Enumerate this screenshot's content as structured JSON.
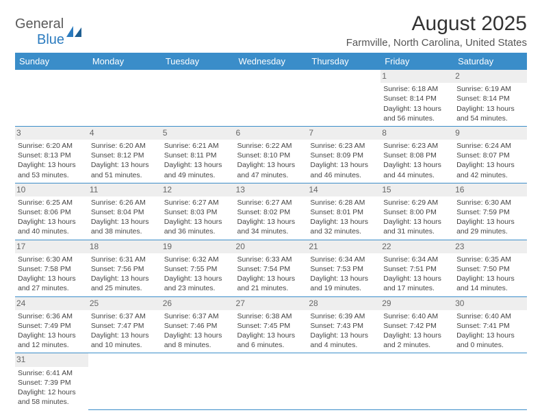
{
  "brand": {
    "general": "General",
    "blue": "Blue"
  },
  "title": "August 2025",
  "location": "Farmville, North Carolina, United States",
  "colors": {
    "header_bg": "#3a8dc9",
    "header_text": "#ffffff",
    "grid_line": "#3a8dc9",
    "daynum_bg": "#eeeeee",
    "text": "#444444",
    "logo_gray": "#5a5a5a",
    "logo_blue": "#2b7bbf"
  },
  "daysOfWeek": [
    "Sunday",
    "Monday",
    "Tuesday",
    "Wednesday",
    "Thursday",
    "Friday",
    "Saturday"
  ],
  "startOffset": 5,
  "days": [
    {
      "n": 1,
      "sr": "6:18 AM",
      "ss": "8:14 PM",
      "dl": "13 hours and 56 minutes."
    },
    {
      "n": 2,
      "sr": "6:19 AM",
      "ss": "8:14 PM",
      "dl": "13 hours and 54 minutes."
    },
    {
      "n": 3,
      "sr": "6:20 AM",
      "ss": "8:13 PM",
      "dl": "13 hours and 53 minutes."
    },
    {
      "n": 4,
      "sr": "6:20 AM",
      "ss": "8:12 PM",
      "dl": "13 hours and 51 minutes."
    },
    {
      "n": 5,
      "sr": "6:21 AM",
      "ss": "8:11 PM",
      "dl": "13 hours and 49 minutes."
    },
    {
      "n": 6,
      "sr": "6:22 AM",
      "ss": "8:10 PM",
      "dl": "13 hours and 47 minutes."
    },
    {
      "n": 7,
      "sr": "6:23 AM",
      "ss": "8:09 PM",
      "dl": "13 hours and 46 minutes."
    },
    {
      "n": 8,
      "sr": "6:23 AM",
      "ss": "8:08 PM",
      "dl": "13 hours and 44 minutes."
    },
    {
      "n": 9,
      "sr": "6:24 AM",
      "ss": "8:07 PM",
      "dl": "13 hours and 42 minutes."
    },
    {
      "n": 10,
      "sr": "6:25 AM",
      "ss": "8:06 PM",
      "dl": "13 hours and 40 minutes."
    },
    {
      "n": 11,
      "sr": "6:26 AM",
      "ss": "8:04 PM",
      "dl": "13 hours and 38 minutes."
    },
    {
      "n": 12,
      "sr": "6:27 AM",
      "ss": "8:03 PM",
      "dl": "13 hours and 36 minutes."
    },
    {
      "n": 13,
      "sr": "6:27 AM",
      "ss": "8:02 PM",
      "dl": "13 hours and 34 minutes."
    },
    {
      "n": 14,
      "sr": "6:28 AM",
      "ss": "8:01 PM",
      "dl": "13 hours and 32 minutes."
    },
    {
      "n": 15,
      "sr": "6:29 AM",
      "ss": "8:00 PM",
      "dl": "13 hours and 31 minutes."
    },
    {
      "n": 16,
      "sr": "6:30 AM",
      "ss": "7:59 PM",
      "dl": "13 hours and 29 minutes."
    },
    {
      "n": 17,
      "sr": "6:30 AM",
      "ss": "7:58 PM",
      "dl": "13 hours and 27 minutes."
    },
    {
      "n": 18,
      "sr": "6:31 AM",
      "ss": "7:56 PM",
      "dl": "13 hours and 25 minutes."
    },
    {
      "n": 19,
      "sr": "6:32 AM",
      "ss": "7:55 PM",
      "dl": "13 hours and 23 minutes."
    },
    {
      "n": 20,
      "sr": "6:33 AM",
      "ss": "7:54 PM",
      "dl": "13 hours and 21 minutes."
    },
    {
      "n": 21,
      "sr": "6:34 AM",
      "ss": "7:53 PM",
      "dl": "13 hours and 19 minutes."
    },
    {
      "n": 22,
      "sr": "6:34 AM",
      "ss": "7:51 PM",
      "dl": "13 hours and 17 minutes."
    },
    {
      "n": 23,
      "sr": "6:35 AM",
      "ss": "7:50 PM",
      "dl": "13 hours and 14 minutes."
    },
    {
      "n": 24,
      "sr": "6:36 AM",
      "ss": "7:49 PM",
      "dl": "13 hours and 12 minutes."
    },
    {
      "n": 25,
      "sr": "6:37 AM",
      "ss": "7:47 PM",
      "dl": "13 hours and 10 minutes."
    },
    {
      "n": 26,
      "sr": "6:37 AM",
      "ss": "7:46 PM",
      "dl": "13 hours and 8 minutes."
    },
    {
      "n": 27,
      "sr": "6:38 AM",
      "ss": "7:45 PM",
      "dl": "13 hours and 6 minutes."
    },
    {
      "n": 28,
      "sr": "6:39 AM",
      "ss": "7:43 PM",
      "dl": "13 hours and 4 minutes."
    },
    {
      "n": 29,
      "sr": "6:40 AM",
      "ss": "7:42 PM",
      "dl": "13 hours and 2 minutes."
    },
    {
      "n": 30,
      "sr": "6:40 AM",
      "ss": "7:41 PM",
      "dl": "13 hours and 0 minutes."
    },
    {
      "n": 31,
      "sr": "6:41 AM",
      "ss": "7:39 PM",
      "dl": "12 hours and 58 minutes."
    }
  ],
  "labels": {
    "sunrise": "Sunrise:",
    "sunset": "Sunset:",
    "daylight": "Daylight:"
  }
}
